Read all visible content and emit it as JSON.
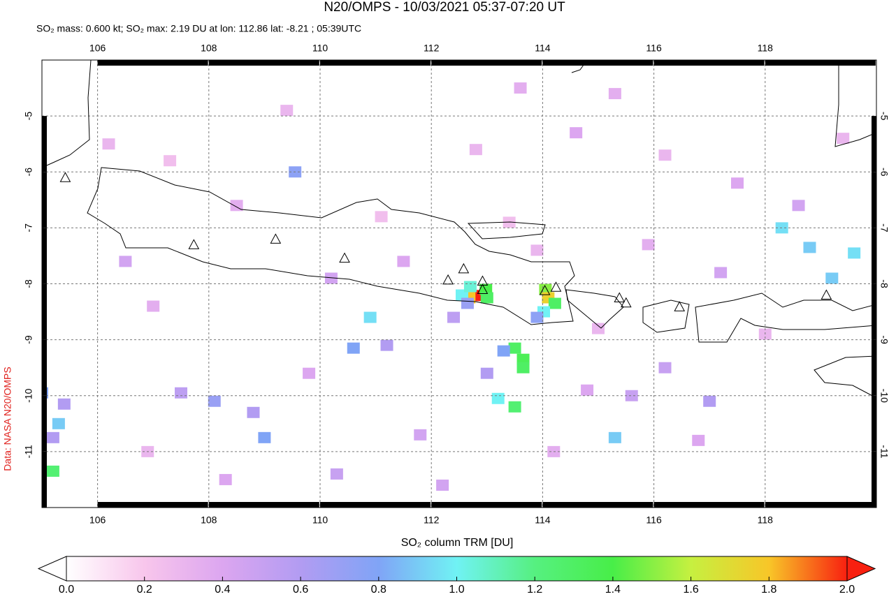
{
  "chart_data": {
    "type": "map",
    "title": "N20/OMPS - 10/03/2021 05:37-07:20 UT",
    "subtitle": "SO₂ mass: 0.600 kt; SO₂ max: 2.19 DU at lon: 112.86 lat: -8.21 ; 05:39UTC",
    "side_label": "Data: NASA N20/OMPS",
    "xlim": [
      105,
      120
    ],
    "ylim": [
      -12,
      -4
    ],
    "xticks": [
      106,
      108,
      110,
      112,
      114,
      116,
      118
    ],
    "yticks": [
      -5,
      -6,
      -7,
      -8,
      -9,
      -10,
      -11
    ],
    "grid": true,
    "cells": {
      "x": [
        112.86,
        112.68,
        112.98,
        113.0,
        112.55,
        112.7,
        112.65,
        114.05,
        114.1,
        114.22,
        114.02,
        113.9,
        113.5,
        113.65,
        113.3,
        113.65,
        113.5,
        113.2,
        113.0,
        105.3,
        105.2,
        105.2,
        105.0,
        105.4,
        119.6,
        118.3,
        118.8,
        119.2,
        108.1,
        109.0,
        108.8,
        110.9,
        111.2,
        109.55,
        110.6,
        115.3,
        115.6,
        112.4,
        116.2,
        117.0,
        107.5,
        106.5,
        107.0,
        106.2,
        107.3,
        108.5,
        109.4,
        111.1,
        112.8,
        113.6,
        114.6,
        115.3,
        116.2,
        117.5,
        118.6,
        119.4,
        115.9,
        117.2,
        118.0,
        116.8,
        114.2,
        111.8,
        110.3,
        108.3,
        106.9,
        109.8,
        111.5,
        113.9,
        113.4,
        110.2,
        115.0,
        112.2,
        114.8
      ],
      "y": [
        -8.21,
        -8.25,
        -8.1,
        -8.25,
        -8.2,
        -8.05,
        -8.35,
        -8.1,
        -8.25,
        -8.35,
        -8.5,
        -8.6,
        -9.15,
        -9.35,
        -9.2,
        -9.5,
        -10.2,
        -10.05,
        -9.6,
        -10.5,
        -10.75,
        -11.35,
        -9.95,
        -10.15,
        -7.45,
        -7.0,
        -7.35,
        -7.9,
        -10.1,
        -10.75,
        -10.3,
        -8.6,
        -9.1,
        -6.0,
        -9.15,
        -10.75,
        -10.0,
        -8.6,
        -9.5,
        -10.1,
        -9.95,
        -7.6,
        -8.4,
        -5.5,
        -5.8,
        -6.6,
        -4.9,
        -6.8,
        -5.6,
        -4.5,
        -5.3,
        -4.6,
        -5.7,
        -6.2,
        -6.6,
        -5.4,
        -7.3,
        -7.8,
        -8.9,
        -10.8,
        -11.0,
        -10.7,
        -11.4,
        -11.5,
        -11.0,
        -9.6,
        -7.6,
        -7.4,
        -6.9,
        -7.9,
        -8.8,
        -11.6,
        -9.9
      ],
      "values": [
        2.19,
        1.8,
        1.4,
        1.3,
        1.0,
        1.05,
        0.7,
        1.5,
        1.75,
        1.3,
        1.0,
        0.75,
        1.3,
        1.35,
        0.8,
        1.3,
        1.25,
        1.0,
        0.6,
        0.9,
        0.6,
        1.25,
        0.8,
        0.6,
        0.95,
        0.95,
        0.9,
        0.9,
        0.7,
        0.8,
        0.6,
        0.95,
        0.6,
        0.75,
        0.8,
        0.9,
        0.5,
        0.55,
        0.5,
        0.6,
        0.55,
        0.45,
        0.35,
        0.3,
        0.25,
        0.35,
        0.3,
        0.25,
        0.3,
        0.35,
        0.4,
        0.35,
        0.3,
        0.4,
        0.45,
        0.3,
        0.35,
        0.45,
        0.3,
        0.4,
        0.35,
        0.45,
        0.5,
        0.4,
        0.3,
        0.4,
        0.4,
        0.3,
        0.25,
        0.45,
        0.3,
        0.45,
        0.4
      ]
    },
    "volcanoes": {
      "x": [
        105.42,
        107.73,
        109.2,
        110.44,
        112.3,
        112.58,
        112.92,
        112.92,
        114.04,
        114.24,
        115.38,
        115.5,
        116.46,
        119.1
      ],
      "y": [
        -6.1,
        -7.3,
        -7.2,
        -7.54,
        -7.93,
        -7.73,
        -7.95,
        -8.1,
        -8.12,
        -8.06,
        -8.25,
        -8.34,
        -8.41,
        -8.2
      ]
    },
    "colorbar": {
      "label": "SO₂ column TRM [DU]",
      "clim": [
        0,
        2
      ],
      "colorscale": [
        "#ffffff",
        "#f8c6ec",
        "#dca6f0",
        "#b29cf2",
        "#80a4f6",
        "#70f2f4",
        "#56f080",
        "#48ee48",
        "#c6f040",
        "#f8c628",
        "#f82010"
      ],
      "ticks": [
        {
          "value": 0,
          "label": "0.0"
        },
        {
          "value": 0.2,
          "label": "0.2"
        },
        {
          "value": 0.4,
          "label": "0.4"
        },
        {
          "value": 0.6,
          "label": "0.6"
        },
        {
          "value": 0.8,
          "label": "0.8"
        },
        {
          "value": 1,
          "label": "1.0"
        },
        {
          "value": 1.2,
          "label": "1.2"
        },
        {
          "value": 1.4,
          "label": "1.4"
        },
        {
          "value": 1.6,
          "label": "1.6"
        },
        {
          "value": 1.8,
          "label": "1.8"
        },
        {
          "value": 2,
          "label": "2.0"
        }
      ]
    }
  }
}
